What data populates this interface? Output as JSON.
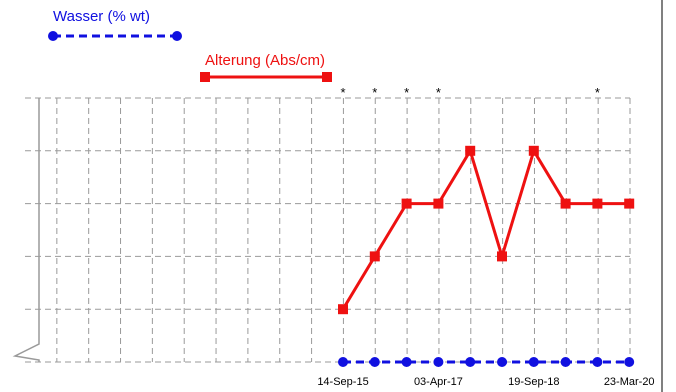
{
  "chart_data": {
    "type": "line",
    "x": [
      "14-Sep-15",
      "",
      "",
      "03-Apr-17",
      "",
      "",
      "19-Sep-18",
      "",
      "",
      "23-Mar-20"
    ],
    "x_tick_labels": [
      "14-Sep-15",
      "03-Apr-17",
      "19-Sep-18",
      "23-Mar-20"
    ],
    "series": [
      {
        "name": "Wasser (% wt)",
        "color": "#1010e0",
        "line_style": "dashed",
        "marker": "circle",
        "values": [
          0,
          0,
          0,
          0,
          0,
          0,
          0,
          0,
          0,
          0
        ]
      },
      {
        "name": "Alterung (Abs/cm)",
        "color": "#ee1111",
        "line_style": "solid",
        "marker": "square",
        "values": [
          1,
          2,
          3,
          3,
          4,
          2,
          4,
          3,
          3,
          3
        ]
      }
    ],
    "annotations": [
      {
        "text": "*",
        "index": 0
      },
      {
        "text": "*",
        "index": 1
      },
      {
        "text": "*",
        "index": 2
      },
      {
        "text": "*",
        "index": 3
      },
      {
        "text": "*",
        "index": 8
      }
    ],
    "grid": true,
    "ylim": [
      0,
      5
    ],
    "y_axis_break": true
  }
}
